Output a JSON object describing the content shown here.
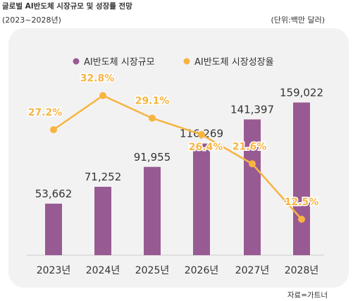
{
  "header": {
    "title": "글로벌 AI반도체 시장규모 및 성장률 전망",
    "subtitle": "(2023~2028년)",
    "unit": "(단위:백만 달러)",
    "source": "자료=가트너"
  },
  "colors": {
    "bar": "#985a92",
    "line": "#f7b441",
    "panel": "#f2f2f2"
  },
  "chart_data": {
    "type": "bar",
    "title": "글로벌 AI반도체 시장규모 및 성장률 전망",
    "categories": [
      "2023년",
      "2024년",
      "2025년",
      "2026년",
      "2027년",
      "2028년"
    ],
    "legend_position": "top",
    "series": [
      {
        "name": "AI반도체 시장규모",
        "type": "bar",
        "values": [
          53662,
          71252,
          91955,
          116269,
          141397,
          159022
        ],
        "labels": [
          "53,662",
          "71,252",
          "91,955",
          "116,269",
          "141,397",
          "159,022"
        ]
      },
      {
        "name": "AI반도체 시장성장율",
        "type": "line",
        "values": [
          27.2,
          32.8,
          29.1,
          26.4,
          21.6,
          12.5
        ],
        "labels": [
          "27.2%",
          "32.8%",
          "29.1%",
          "26.4%",
          "21.6%",
          "12.5%"
        ]
      }
    ],
    "grid": false
  }
}
